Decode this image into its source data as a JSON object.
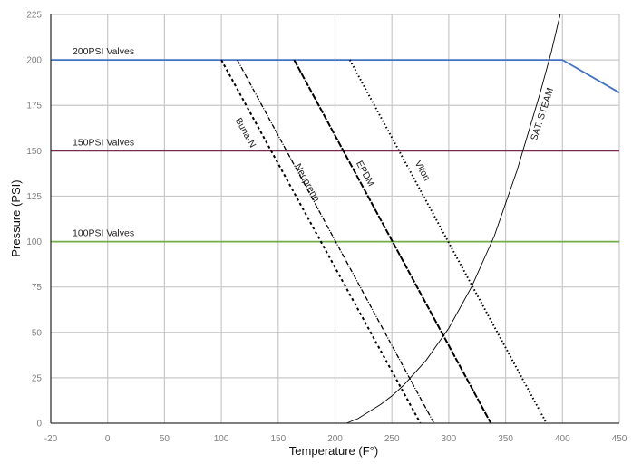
{
  "chart_data": {
    "type": "line",
    "title": "",
    "xlabel": "Temperature (F°)",
    "ylabel": "Pressure (PSI)",
    "x_ticks": [
      -20,
      0,
      50,
      100,
      150,
      200,
      250,
      300,
      350,
      400,
      450
    ],
    "y_ticks": [
      0,
      25,
      50,
      75,
      100,
      125,
      150,
      175,
      200,
      225
    ],
    "xlim": [
      -20,
      450
    ],
    "ylim": [
      0,
      225
    ],
    "grid": true,
    "series": [
      {
        "name": "200PSI Valves",
        "color": "#4472c4",
        "style": "solid",
        "points": [
          [
            -20,
            200
          ],
          [
            400,
            200
          ],
          [
            450,
            182
          ]
        ]
      },
      {
        "name": "150PSI Valves",
        "color": "#7b2a4a",
        "style": "solid",
        "points": [
          [
            -20,
            150
          ],
          [
            450,
            150
          ]
        ]
      },
      {
        "name": "100PSI Valves",
        "color": "#70ad47",
        "style": "solid",
        "points": [
          [
            -20,
            100
          ],
          [
            450,
            100
          ]
        ]
      },
      {
        "name": "Buna-N",
        "color": "#000000",
        "style": "dashed",
        "points": [
          [
            100,
            200
          ],
          [
            275,
            0
          ]
        ]
      },
      {
        "name": "Neoprene",
        "color": "#000000",
        "style": "dashdot",
        "points": [
          [
            114,
            200
          ],
          [
            287,
            0
          ]
        ]
      },
      {
        "name": "EPDM",
        "color": "#000000",
        "style": "longdash",
        "points": [
          [
            164,
            200
          ],
          [
            337,
            0
          ]
        ]
      },
      {
        "name": "Viton",
        "color": "#000000",
        "style": "dotted",
        "points": [
          [
            213,
            200
          ],
          [
            386,
            0
          ]
        ]
      },
      {
        "name": "SAT. STEAM",
        "color": "#000000",
        "style": "thin",
        "points": [
          [
            210,
            0
          ],
          [
            220,
            2.5
          ],
          [
            240,
            10.3
          ],
          [
            250,
            15
          ],
          [
            260,
            20.7
          ],
          [
            280,
            34.5
          ],
          [
            300,
            52.3
          ],
          [
            320,
            75
          ],
          [
            340,
            103
          ],
          [
            360,
            139
          ],
          [
            380,
            181
          ],
          [
            390,
            204
          ],
          [
            398,
            225
          ]
        ]
      }
    ]
  }
}
